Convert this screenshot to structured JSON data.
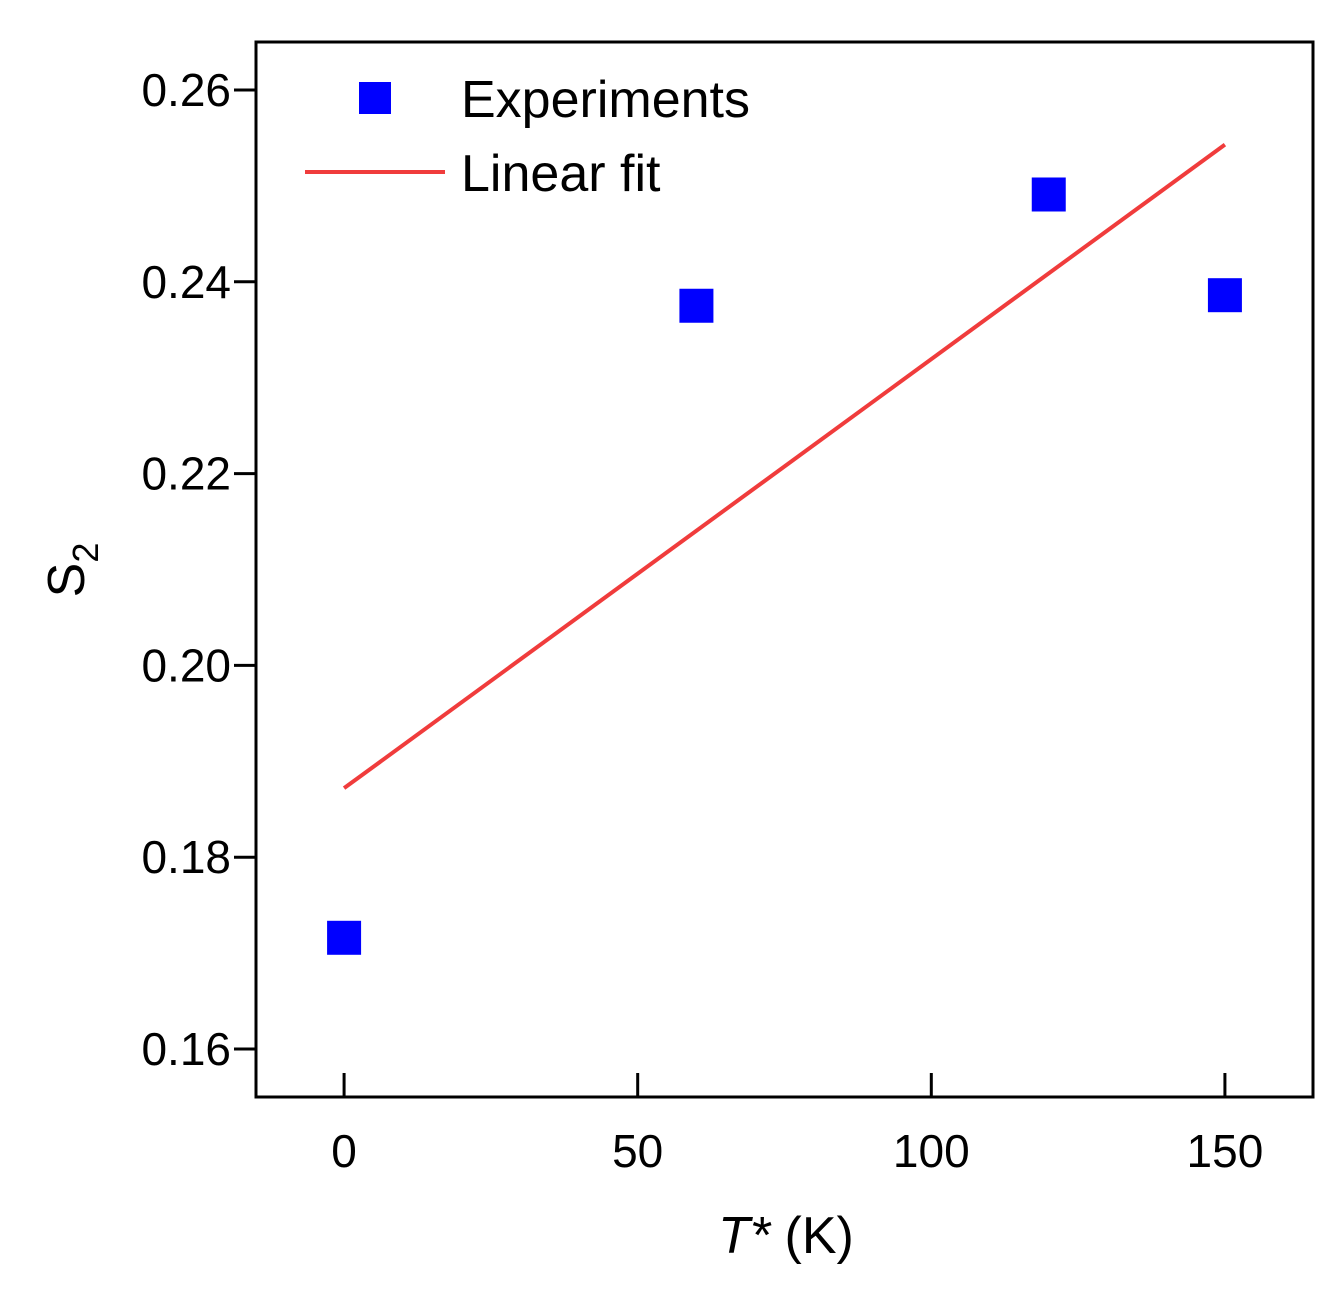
{
  "chart_data": {
    "type": "scatter",
    "title": "",
    "xlabel_main": "T*",
    "xlabel_unit": " (K)",
    "ylabel_main": "S",
    "ylabel_sub": "2",
    "xlim": [
      -15,
      165
    ],
    "ylim": [
      0.155,
      0.265
    ],
    "xticks": [
      0,
      50,
      100,
      150
    ],
    "xtick_labels": [
      "0",
      "50",
      "100",
      "150"
    ],
    "yticks": [
      0.16,
      0.18,
      0.2,
      0.22,
      0.24,
      0.26
    ],
    "ytick_labels": [
      "0.16",
      "0.18",
      "0.20",
      "0.22",
      "0.24",
      "0.26"
    ],
    "grid": false,
    "legend_position": "top-left",
    "series": [
      {
        "name": "Experiments",
        "kind": "scatter",
        "marker": "square",
        "color": "#0000ff",
        "x": [
          0,
          60,
          120,
          150
        ],
        "y": [
          0.1716,
          0.2375,
          0.2491,
          0.2386
        ]
      },
      {
        "name": "Linear fit",
        "kind": "line",
        "color": "#f03c3c",
        "x": [
          0,
          150
        ],
        "y": [
          0.1872,
          0.2543
        ]
      }
    ]
  }
}
